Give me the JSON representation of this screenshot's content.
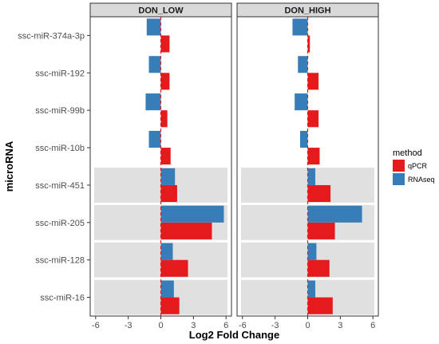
{
  "chart_data": {
    "type": "bar",
    "orientation": "horizontal",
    "xlabel": "Log2 Fold Change",
    "ylabel": "microRNA",
    "xlim": [
      -6.5,
      6.5
    ],
    "xticks": [
      -6,
      -3,
      0,
      3,
      6
    ],
    "xtick_labels": [
      "-6",
      "-3",
      "0",
      "3",
      "6"
    ],
    "grid": false,
    "legend": {
      "title": "method",
      "placement": "right",
      "entries": [
        {
          "name": "qPCR",
          "color": "#E41A1C"
        },
        {
          "name": "RNAseq",
          "color": "#377EB8"
        }
      ]
    },
    "categories": [
      "ssc-miR-374a-3p",
      "ssc-miR-192",
      "ssc-miR-99b",
      "ssc-miR-10b",
      "ssc-miR-451",
      "ssc-miR-205",
      "ssc-miR-128",
      "ssc-miR-16"
    ],
    "shaded_categories": [
      "ssc-miR-451",
      "ssc-miR-205",
      "ssc-miR-128",
      "ssc-miR-16"
    ],
    "reference_line": {
      "x": 0,
      "style": "dashed",
      "color": "#E41A1C"
    },
    "panels": [
      {
        "title": "DON_LOW",
        "series": [
          {
            "name": "qPCR",
            "values": [
              0.8,
              0.8,
              0.6,
              0.9,
              1.5,
              4.7,
              2.5,
              1.7
            ]
          },
          {
            "name": "RNAseq",
            "values": [
              -1.3,
              -1.1,
              -1.4,
              -1.1,
              1.3,
              5.8,
              1.1,
              1.2
            ]
          }
        ]
      },
      {
        "title": "DON_HIGH",
        "series": [
          {
            "name": "qPCR",
            "values": [
              0.2,
              1.0,
              1.0,
              1.1,
              2.1,
              2.5,
              2.0,
              2.3
            ]
          },
          {
            "name": "RNAseq",
            "values": [
              -1.4,
              -0.9,
              -1.2,
              -0.7,
              0.7,
              5.0,
              0.8,
              0.7
            ]
          }
        ]
      }
    ]
  }
}
